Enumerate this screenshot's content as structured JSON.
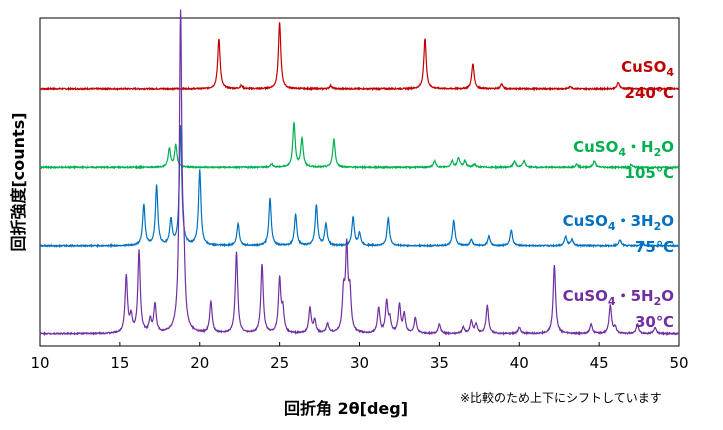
{
  "chart_data": {
    "type": "line",
    "xlabel": "回折角 2θ[deg]",
    "ylabel": "回折強度[counts]",
    "xlim": [
      10,
      50
    ],
    "x_ticks": [
      10,
      15,
      20,
      25,
      30,
      35,
      40,
      45,
      50
    ],
    "grid": false,
    "y_tick_labels": false,
    "note": "※比較のため上下にシフトしています",
    "series": [
      {
        "name": "CuSO4",
        "name_sub": "4",
        "temperature": "240℃",
        "color": "#c00000",
        "baseline": 0.8,
        "peaks": [
          [
            21.2,
            0.16
          ],
          [
            22.6,
            0.01
          ],
          [
            25.0,
            0.21
          ],
          [
            28.2,
            0.01
          ],
          [
            34.1,
            0.16
          ],
          [
            37.1,
            0.08
          ],
          [
            38.9,
            0.015
          ],
          [
            43.2,
            0.008
          ],
          [
            46.2,
            0.02
          ]
        ]
      },
      {
        "name": "CuSO4・H2O",
        "temperature": "105℃",
        "color": "#00b050",
        "baseline": 0.55,
        "peaks": [
          [
            18.1,
            0.06
          ],
          [
            18.5,
            0.07
          ],
          [
            24.5,
            0.01
          ],
          [
            25.9,
            0.14
          ],
          [
            26.4,
            0.09
          ],
          [
            28.4,
            0.09
          ],
          [
            34.7,
            0.02
          ],
          [
            35.8,
            0.02
          ],
          [
            36.2,
            0.03
          ],
          [
            36.6,
            0.02
          ],
          [
            37.2,
            0.01
          ],
          [
            39.7,
            0.02
          ],
          [
            40.3,
            0.02
          ],
          [
            43.6,
            0.01
          ],
          [
            44.7,
            0.02
          ],
          [
            47.0,
            0.008
          ]
        ]
      },
      {
        "name": "CuSO4・3H2O",
        "temperature": "75℃",
        "color": "#0070c0",
        "baseline": 0.3,
        "peaks": [
          [
            16.5,
            0.13
          ],
          [
            17.3,
            0.19
          ],
          [
            18.2,
            0.08
          ],
          [
            18.8,
            0.38
          ],
          [
            20.0,
            0.24
          ],
          [
            22.4,
            0.07
          ],
          [
            24.4,
            0.15
          ],
          [
            26.0,
            0.1
          ],
          [
            27.3,
            0.13
          ],
          [
            27.9,
            0.07
          ],
          [
            29.6,
            0.09
          ],
          [
            30.0,
            0.04
          ],
          [
            31.8,
            0.09
          ],
          [
            35.9,
            0.08
          ],
          [
            37.0,
            0.02
          ],
          [
            38.1,
            0.03
          ],
          [
            39.5,
            0.05
          ],
          [
            42.9,
            0.03
          ],
          [
            43.3,
            0.02
          ],
          [
            46.3,
            0.02
          ],
          [
            47.7,
            0.01
          ]
        ]
      },
      {
        "name": "CuSO4・5H2O",
        "temperature": "30℃",
        "color": "#7030a0",
        "baseline": 0.02,
        "peaks": [
          [
            15.4,
            0.18
          ],
          [
            15.7,
            0.05
          ],
          [
            16.2,
            0.26
          ],
          [
            16.9,
            0.04
          ],
          [
            17.2,
            0.09
          ],
          [
            18.8,
            1.0
          ],
          [
            19.0,
            0.19
          ],
          [
            20.7,
            0.1
          ],
          [
            22.3,
            0.26
          ],
          [
            23.9,
            0.22
          ],
          [
            25.0,
            0.17
          ],
          [
            25.2,
            0.07
          ],
          [
            26.9,
            0.08
          ],
          [
            27.2,
            0.04
          ],
          [
            28.0,
            0.03
          ],
          [
            29.0,
            0.12
          ],
          [
            29.2,
            0.26
          ],
          [
            29.4,
            0.12
          ],
          [
            31.2,
            0.08
          ],
          [
            31.7,
            0.1
          ],
          [
            31.9,
            0.04
          ],
          [
            32.5,
            0.09
          ],
          [
            32.8,
            0.06
          ],
          [
            33.5,
            0.05
          ],
          [
            35.0,
            0.03
          ],
          [
            36.5,
            0.02
          ],
          [
            37.0,
            0.04
          ],
          [
            37.3,
            0.03
          ],
          [
            38.0,
            0.09
          ],
          [
            40.0,
            0.02
          ],
          [
            42.2,
            0.22
          ],
          [
            44.5,
            0.03
          ],
          [
            45.7,
            0.09
          ],
          [
            46.0,
            0.02
          ],
          [
            47.4,
            0.03
          ],
          [
            48.5,
            0.02
          ]
        ]
      }
    ]
  }
}
